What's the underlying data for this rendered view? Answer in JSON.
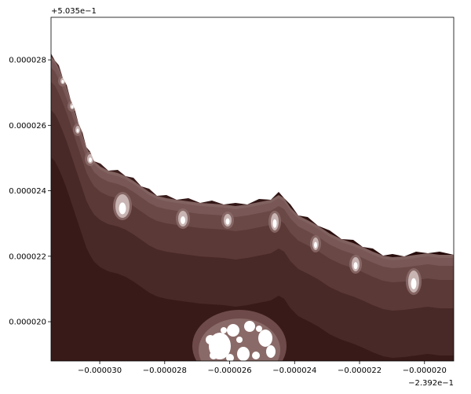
{
  "chart_data": {
    "type": "heatmap",
    "description_kind": "escape-time fractal (Mandelbrot set detail)",
    "x_offset_label": "−2.392e−1",
    "y_offset_label": "+5.035e−1",
    "x_offset": -0.2392,
    "y_offset": 0.5035,
    "xlim": [
      -3.15e-05,
      -1.91e-05
    ],
    "ylim": [
      1.88e-05,
      2.93e-05
    ],
    "x_ticks": [
      {
        "value": -3e-05,
        "label": "−0.000030"
      },
      {
        "value": -2.8e-05,
        "label": "−0.000028"
      },
      {
        "value": -2.6e-05,
        "label": "−0.000026"
      },
      {
        "value": -2.4e-05,
        "label": "−0.000024"
      },
      {
        "value": -2.2e-05,
        "label": "−0.000022"
      },
      {
        "value": -2e-05,
        "label": "−0.000020"
      }
    ],
    "y_ticks": [
      {
        "value": 2e-05,
        "label": "0.000020"
      },
      {
        "value": 2.2e-05,
        "label": "0.000022"
      },
      {
        "value": 2.4e-05,
        "label": "0.000024"
      },
      {
        "value": 2.6e-05,
        "label": "0.000026"
      },
      {
        "value": 2.8e-05,
        "label": "0.000028"
      }
    ],
    "colormap": [
      "#1f0504",
      "#2a0f0e",
      "#3b1d1c",
      "#4e2d2c",
      "#5f3c3b",
      "#6e4b4a",
      "#8a6a68",
      "#c8b5b3",
      "#ffffff"
    ],
    "interior_color": "#ffffff",
    "grid": false,
    "title": "",
    "xlabel": "",
    "ylabel": ""
  }
}
